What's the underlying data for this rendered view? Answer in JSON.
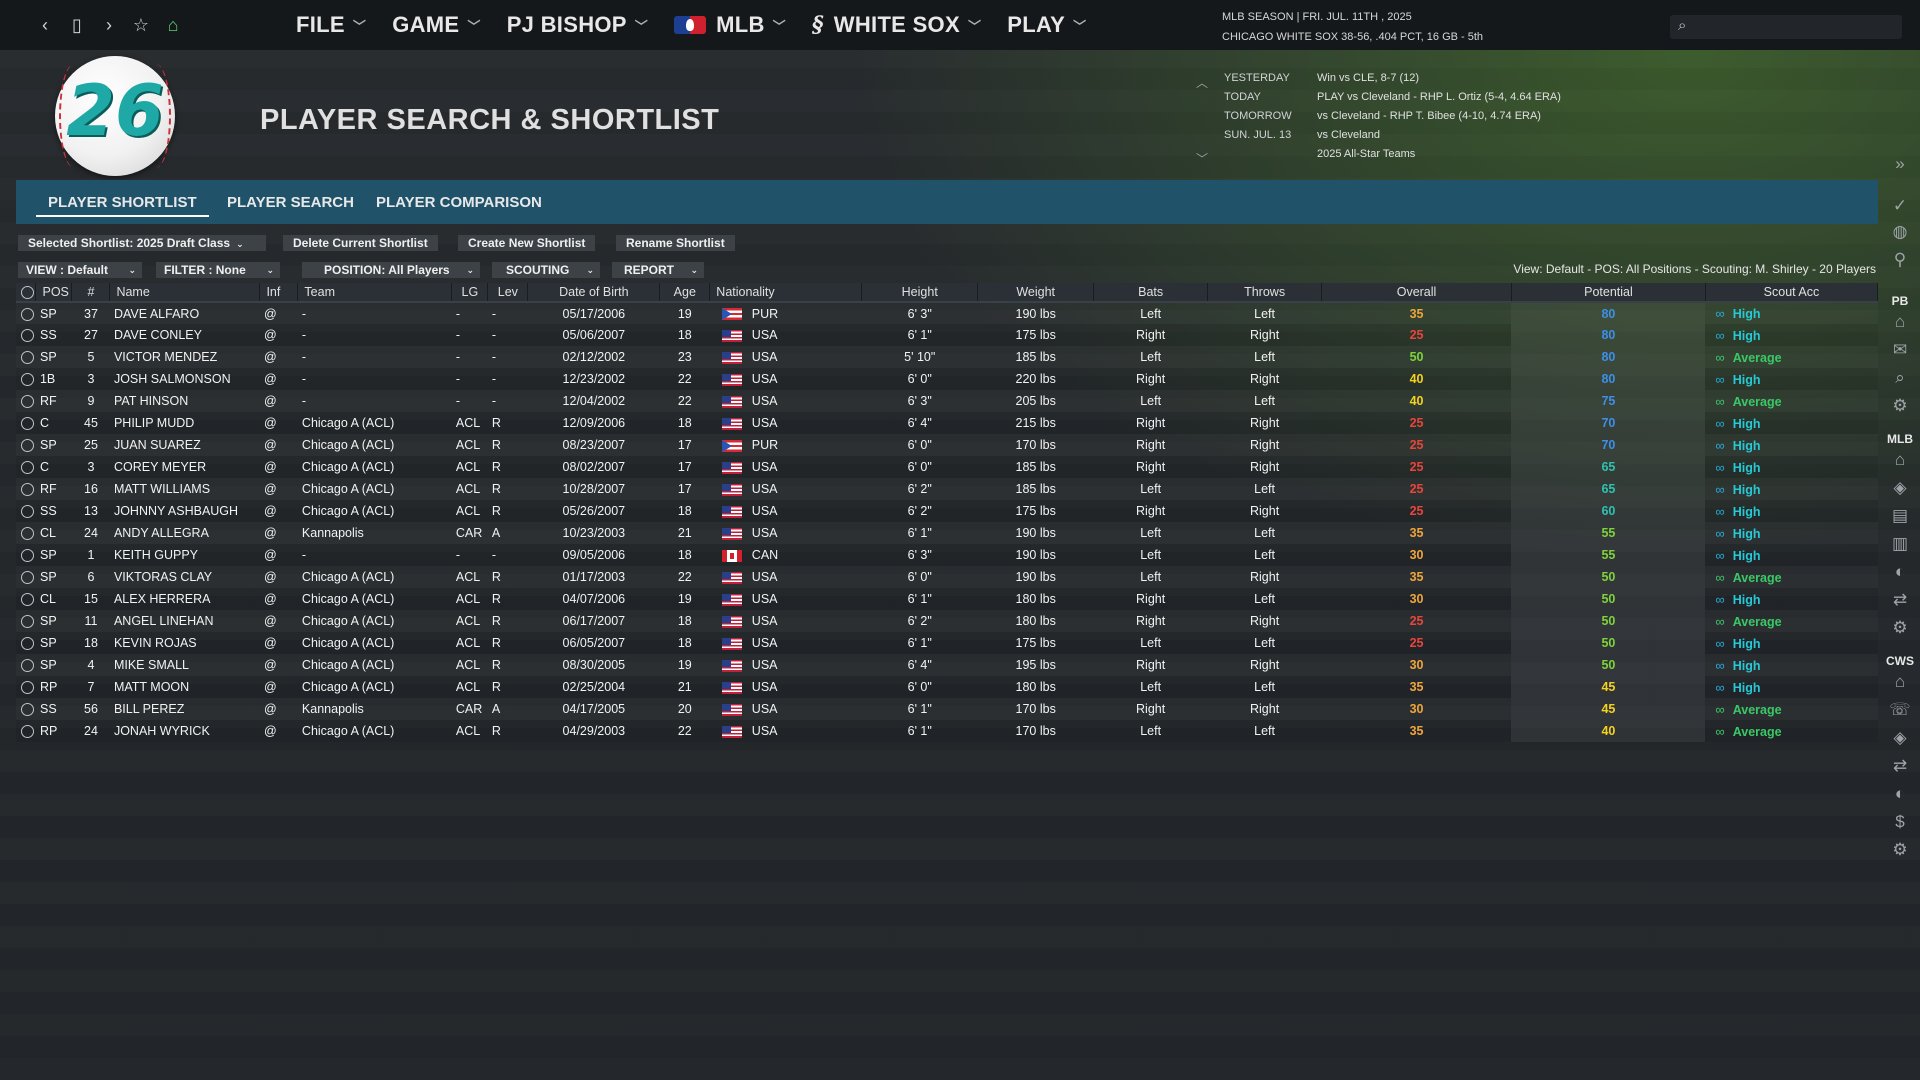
{
  "nav": {
    "menus": [
      {
        "label": "FILE"
      },
      {
        "label": "GAME"
      },
      {
        "label": "PJ BISHOP"
      },
      {
        "label": "MLB"
      },
      {
        "label": "WHITE SOX"
      },
      {
        "label": "PLAY"
      }
    ]
  },
  "season": {
    "line1": "MLB SEASON  |  FRI. JUL. 11TH , 2025",
    "line2": "CHICAGO WHITE SOX  38-56, .404 PCT, 16 GB - 5th"
  },
  "search": {
    "placeholder": ""
  },
  "logo": {
    "number": "26"
  },
  "page_title": "PLAYER SEARCH & SHORTLIST",
  "schedule": [
    {
      "day": "YESTERDAY",
      "desc": "Win vs CLE, 8-7 (12)"
    },
    {
      "day": "TODAY",
      "desc": "PLAY vs Cleveland - RHP L. Ortiz (5-4, 4.64 ERA)"
    },
    {
      "day": "TOMORROW",
      "desc": "vs Cleveland - RHP T. Bibee (4-10, 4.74 ERA)"
    },
    {
      "day": "SUN. JUL. 13",
      "desc": "vs Cleveland"
    },
    {
      "day": "",
      "desc": "2025 All-Star Teams"
    }
  ],
  "tabs": [
    "PLAYER SHORTLIST",
    "PLAYER SEARCH",
    "PLAYER COMPARISON"
  ],
  "right_labels": {
    "pb": "PB",
    "mlb": "MLB",
    "cws": "CWS"
  },
  "toolbar": {
    "selected_shortlist": "Selected Shortlist: 2025 Draft Class",
    "delete": "Delete Current Shortlist",
    "create": "Create New Shortlist",
    "rename": "Rename Shortlist"
  },
  "filters": {
    "view": "VIEW : Default",
    "filter": "FILTER : None",
    "position": "POSITION: All Players",
    "scouting": "SCOUTING",
    "report": "REPORT"
  },
  "view_summary": "View: Default - POS: All Positions - Scouting: M. Shirley - 20 Players",
  "columns": [
    "POS",
    "#",
    "Name",
    "Inf",
    "Team",
    "LG",
    "Lev",
    "Date of Birth",
    "Age",
    "Nationality",
    "Height",
    "Weight",
    "Bats",
    "Throws",
    "Overall",
    "Potential",
    "Scout Acc"
  ],
  "colors": {
    "overall_low": "#e8453c",
    "overall_mid": "#f0a53a",
    "overall_high": "#f5d21e",
    "overall_top": "#7fd23b",
    "pot_blue": "#3d8fe8",
    "pot_teal": "#2fc2b0",
    "pot_green": "#7fd23b",
    "pot_yellow": "#f5d21e"
  },
  "rows": [
    {
      "pos": "SP",
      "num": "37",
      "name": "DAVE ALFARO",
      "inf": "@",
      "team": "-",
      "lg": "-",
      "lev": "-",
      "dob": "05/17/2006",
      "age": "19",
      "nat": "PUR",
      "height": "6' 3\"",
      "weight": "190 lbs",
      "bats": "Left",
      "throws": "Left",
      "overall": "35",
      "potential": "80",
      "acc": "High"
    },
    {
      "pos": "SS",
      "num": "27",
      "name": "DAVE CONLEY",
      "inf": "@",
      "team": "-",
      "lg": "-",
      "lev": "-",
      "dob": "05/06/2007",
      "age": "18",
      "nat": "USA",
      "height": "6' 1\"",
      "weight": "175 lbs",
      "bats": "Right",
      "throws": "Right",
      "overall": "25",
      "potential": "80",
      "acc": "High"
    },
    {
      "pos": "SP",
      "num": "5",
      "name": "VICTOR MENDEZ",
      "inf": "@",
      "team": "-",
      "lg": "-",
      "lev": "-",
      "dob": "02/12/2002",
      "age": "23",
      "nat": "USA",
      "height": "5' 10\"",
      "weight": "185 lbs",
      "bats": "Left",
      "throws": "Left",
      "overall": "50",
      "potential": "80",
      "acc": "Average"
    },
    {
      "pos": "1B",
      "num": "3",
      "name": "JOSH SALMONSON",
      "inf": "@",
      "team": "-",
      "lg": "-",
      "lev": "-",
      "dob": "12/23/2002",
      "age": "22",
      "nat": "USA",
      "height": "6' 0\"",
      "weight": "220 lbs",
      "bats": "Right",
      "throws": "Right",
      "overall": "40",
      "potential": "80",
      "acc": "High"
    },
    {
      "pos": "RF",
      "num": "9",
      "name": "PAT HINSON",
      "inf": "@",
      "team": "-",
      "lg": "-",
      "lev": "-",
      "dob": "12/04/2002",
      "age": "22",
      "nat": "USA",
      "height": "6' 3\"",
      "weight": "205 lbs",
      "bats": "Left",
      "throws": "Left",
      "overall": "40",
      "potential": "75",
      "acc": "Average"
    },
    {
      "pos": "C",
      "num": "45",
      "name": "PHILIP MUDD",
      "inf": "@",
      "team": "Chicago A (ACL)",
      "lg": "ACL",
      "lev": "R",
      "dob": "12/09/2006",
      "age": "18",
      "nat": "USA",
      "height": "6' 4\"",
      "weight": "215 lbs",
      "bats": "Right",
      "throws": "Right",
      "overall": "25",
      "potential": "70",
      "acc": "High"
    },
    {
      "pos": "SP",
      "num": "25",
      "name": "JUAN SUAREZ",
      "inf": "@",
      "team": "Chicago A (ACL)",
      "lg": "ACL",
      "lev": "R",
      "dob": "08/23/2007",
      "age": "17",
      "nat": "PUR",
      "height": "6' 0\"",
      "weight": "170 lbs",
      "bats": "Right",
      "throws": "Right",
      "overall": "25",
      "potential": "70",
      "acc": "High"
    },
    {
      "pos": "C",
      "num": "3",
      "name": "COREY MEYER",
      "inf": "@",
      "team": "Chicago A (ACL)",
      "lg": "ACL",
      "lev": "R",
      "dob": "08/02/2007",
      "age": "17",
      "nat": "USA",
      "height": "6' 0\"",
      "weight": "185 lbs",
      "bats": "Right",
      "throws": "Right",
      "overall": "25",
      "potential": "65",
      "acc": "High"
    },
    {
      "pos": "RF",
      "num": "16",
      "name": "MATT WILLIAMS",
      "inf": "@",
      "team": "Chicago A (ACL)",
      "lg": "ACL",
      "lev": "R",
      "dob": "10/28/2007",
      "age": "17",
      "nat": "USA",
      "height": "6' 2\"",
      "weight": "185 lbs",
      "bats": "Left",
      "throws": "Left",
      "overall": "25",
      "potential": "65",
      "acc": "High"
    },
    {
      "pos": "SS",
      "num": "13",
      "name": "JOHNNY ASHBAUGH",
      "inf": "@",
      "team": "Chicago A (ACL)",
      "lg": "ACL",
      "lev": "R",
      "dob": "05/26/2007",
      "age": "18",
      "nat": "USA",
      "height": "6' 2\"",
      "weight": "175 lbs",
      "bats": "Right",
      "throws": "Right",
      "overall": "25",
      "potential": "60",
      "acc": "High"
    },
    {
      "pos": "CL",
      "num": "24",
      "name": "ANDY ALLEGRA",
      "inf": "@",
      "team": "Kannapolis",
      "lg": "CAR",
      "lev": "A",
      "dob": "10/23/2003",
      "age": "21",
      "nat": "USA",
      "height": "6' 1\"",
      "weight": "190 lbs",
      "bats": "Left",
      "throws": "Left",
      "overall": "35",
      "potential": "55",
      "acc": "High"
    },
    {
      "pos": "SP",
      "num": "1",
      "name": "KEITH GUPPY",
      "inf": "@",
      "team": "-",
      "lg": "-",
      "lev": "-",
      "dob": "09/05/2006",
      "age": "18",
      "nat": "CAN",
      "height": "6' 3\"",
      "weight": "190 lbs",
      "bats": "Left",
      "throws": "Left",
      "overall": "30",
      "potential": "55",
      "acc": "High"
    },
    {
      "pos": "SP",
      "num": "6",
      "name": "VIKTORAS CLAY",
      "inf": "@",
      "team": "Chicago A (ACL)",
      "lg": "ACL",
      "lev": "R",
      "dob": "01/17/2003",
      "age": "22",
      "nat": "USA",
      "height": "6' 0\"",
      "weight": "190 lbs",
      "bats": "Left",
      "throws": "Right",
      "overall": "35",
      "potential": "50",
      "acc": "Average"
    },
    {
      "pos": "CL",
      "num": "15",
      "name": "ALEX HERRERA",
      "inf": "@",
      "team": "Chicago A (ACL)",
      "lg": "ACL",
      "lev": "R",
      "dob": "04/07/2006",
      "age": "19",
      "nat": "USA",
      "height": "6' 1\"",
      "weight": "180 lbs",
      "bats": "Right",
      "throws": "Left",
      "overall": "30",
      "potential": "50",
      "acc": "High"
    },
    {
      "pos": "SP",
      "num": "11",
      "name": "ANGEL LINEHAN",
      "inf": "@",
      "team": "Chicago A (ACL)",
      "lg": "ACL",
      "lev": "R",
      "dob": "06/17/2007",
      "age": "18",
      "nat": "USA",
      "height": "6' 2\"",
      "weight": "180 lbs",
      "bats": "Right",
      "throws": "Right",
      "overall": "25",
      "potential": "50",
      "acc": "Average"
    },
    {
      "pos": "SP",
      "num": "18",
      "name": "KEVIN ROJAS",
      "inf": "@",
      "team": "Chicago A (ACL)",
      "lg": "ACL",
      "lev": "R",
      "dob": "06/05/2007",
      "age": "18",
      "nat": "USA",
      "height": "6' 1\"",
      "weight": "175 lbs",
      "bats": "Left",
      "throws": "Left",
      "overall": "25",
      "potential": "50",
      "acc": "High"
    },
    {
      "pos": "SP",
      "num": "4",
      "name": "MIKE SMALL",
      "inf": "@",
      "team": "Chicago A (ACL)",
      "lg": "ACL",
      "lev": "R",
      "dob": "08/30/2005",
      "age": "19",
      "nat": "USA",
      "height": "6' 4\"",
      "weight": "195 lbs",
      "bats": "Right",
      "throws": "Right",
      "overall": "30",
      "potential": "50",
      "acc": "High"
    },
    {
      "pos": "RP",
      "num": "7",
      "name": "MATT MOON",
      "inf": "@",
      "team": "Chicago A (ACL)",
      "lg": "ACL",
      "lev": "R",
      "dob": "02/25/2004",
      "age": "21",
      "nat": "USA",
      "height": "6' 0\"",
      "weight": "180 lbs",
      "bats": "Left",
      "throws": "Left",
      "overall": "35",
      "potential": "45",
      "acc": "High"
    },
    {
      "pos": "SS",
      "num": "56",
      "name": "BILL PEREZ",
      "inf": "@",
      "team": "Kannapolis",
      "lg": "CAR",
      "lev": "A",
      "dob": "04/17/2005",
      "age": "20",
      "nat": "USA",
      "height": "6' 1\"",
      "weight": "170 lbs",
      "bats": "Right",
      "throws": "Right",
      "overall": "30",
      "potential": "45",
      "acc": "Average"
    },
    {
      "pos": "RP",
      "num": "24",
      "name": "JONAH WYRICK",
      "inf": "@",
      "team": "Chicago A (ACL)",
      "lg": "ACL",
      "lev": "R",
      "dob": "04/29/2003",
      "age": "22",
      "nat": "USA",
      "height": "6' 1\"",
      "weight": "170 lbs",
      "bats": "Left",
      "throws": "Left",
      "overall": "35",
      "potential": "40",
      "acc": "Average"
    }
  ]
}
